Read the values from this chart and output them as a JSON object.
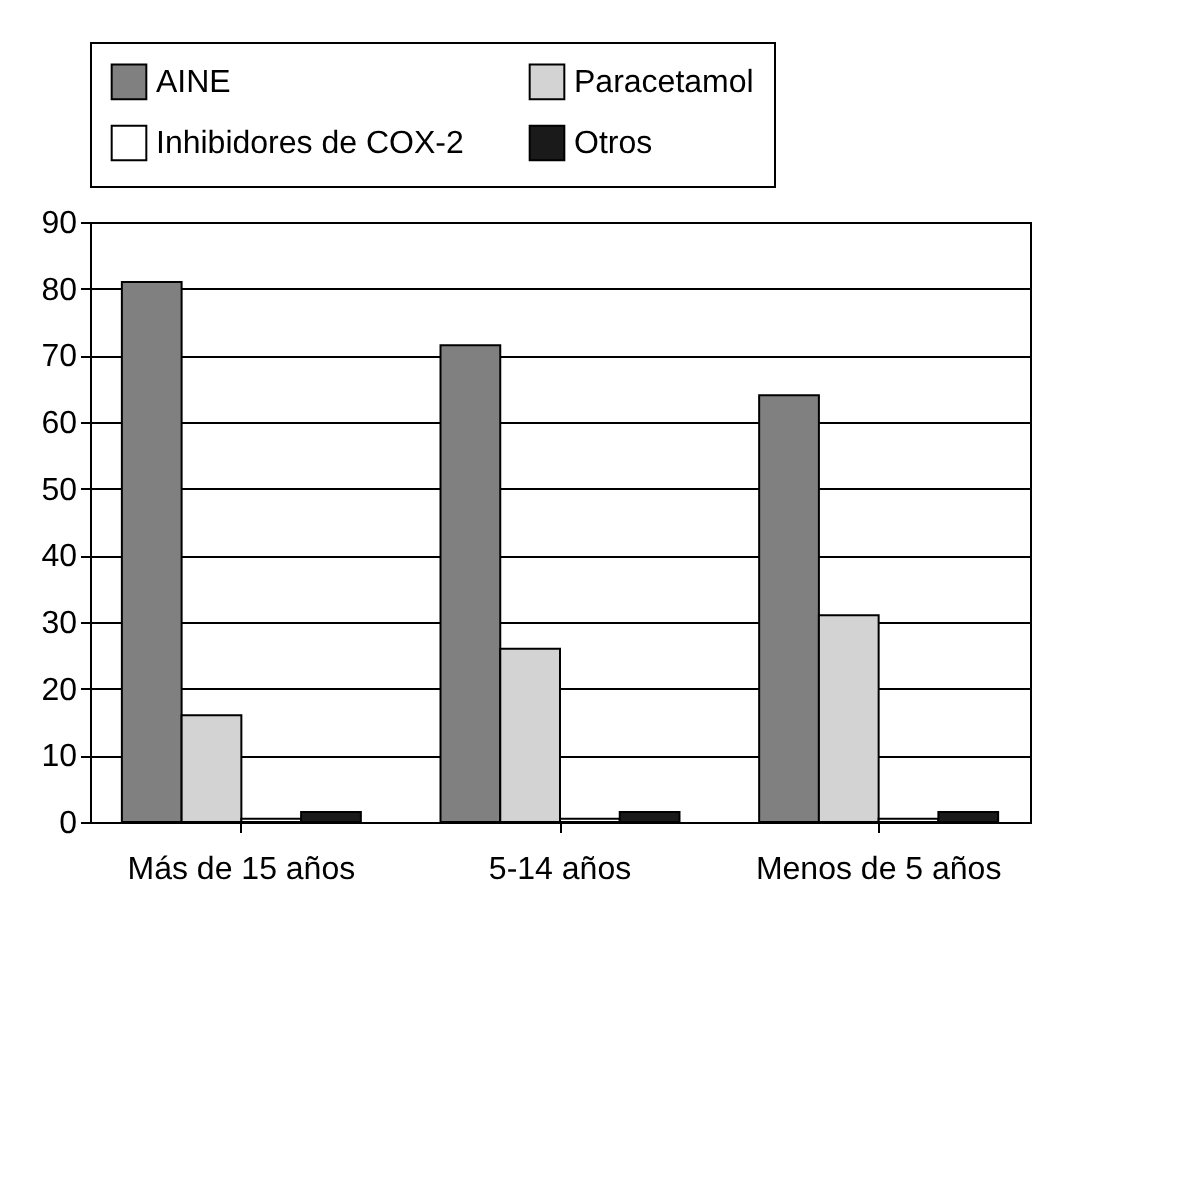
{
  "chart_data": {
    "type": "bar",
    "categories": [
      "Más de 15 años",
      "5-14 años",
      "Menos de 5 años"
    ],
    "series": [
      {
        "name": "AINE",
        "color": "#808080",
        "values": [
          81,
          71.5,
          64
        ]
      },
      {
        "name": "Paracetamol",
        "color": "#d3d3d3",
        "values": [
          16,
          26,
          31
        ]
      },
      {
        "name": "Inhibidores de COX-2",
        "color": "#ffffff",
        "values": [
          0.5,
          0.5,
          0.5
        ]
      },
      {
        "name": "Otros",
        "color": "#1a1a1a",
        "values": [
          1.5,
          1.5,
          1.5
        ]
      }
    ],
    "ylim": [
      0,
      90
    ],
    "yticks": [
      0,
      10,
      20,
      30,
      40,
      50,
      60,
      70,
      80,
      90
    ],
    "grid": "y",
    "legend": "top"
  }
}
